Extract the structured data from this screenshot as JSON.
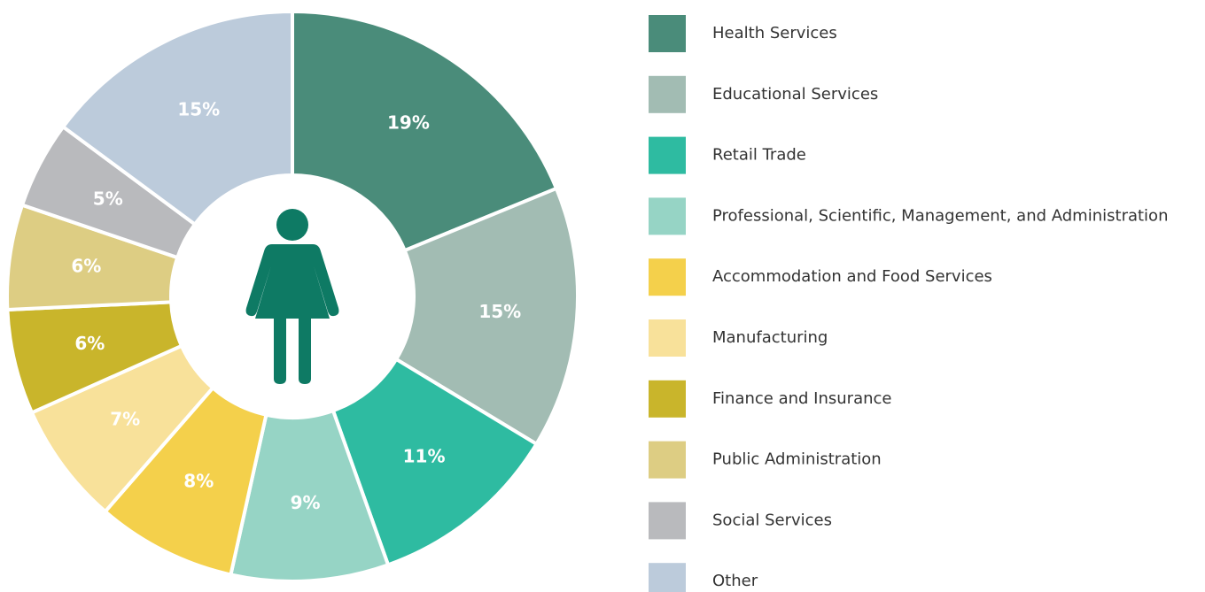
{
  "chart_data": {
    "type": "donut",
    "categories": [
      "Health Services",
      "Educational Services",
      "Retail Trade",
      "Professional, Scientific, Management, and Administration",
      "Accommodation and Food Services",
      "Manufacturing",
      "Finance and Insurance",
      "Public Administration",
      "Social Services",
      "Other"
    ],
    "values": [
      19,
      15,
      11,
      9,
      8,
      7,
      6,
      6,
      5,
      15
    ],
    "value_labels": [
      "19%",
      "15%",
      "11%",
      "9%",
      "8%",
      "7%",
      "6%",
      "6%",
      "5%",
      "15%"
    ],
    "colors": [
      "#4a8c7a",
      "#a2bcb3",
      "#2ebba1",
      "#96d4c5",
      "#f4d04b",
      "#f8e19a",
      "#c9b52b",
      "#ddcd83",
      "#b9babd",
      "#bccbdb"
    ],
    "legend": "right"
  }
}
